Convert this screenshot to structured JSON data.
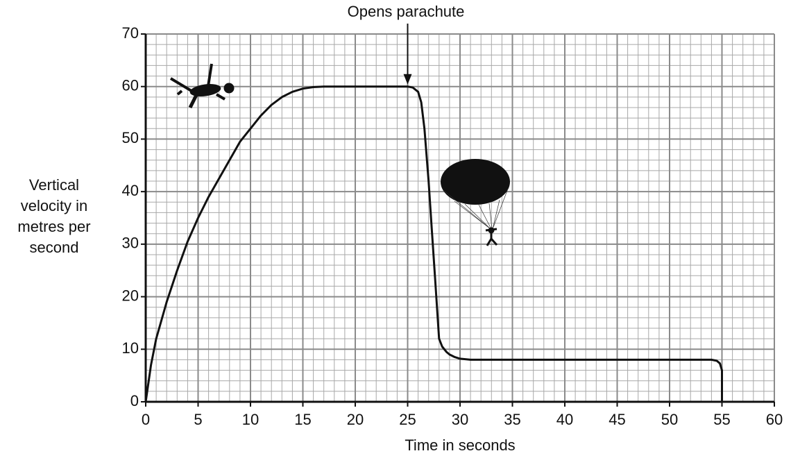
{
  "chart_data": {
    "type": "line",
    "x_label": "Time in seconds",
    "y_label": [
      "Vertical",
      "velocity in",
      "metres per",
      "second"
    ],
    "x": [
      0,
      0.5,
      1,
      2,
      3,
      4,
      5,
      6,
      7,
      8,
      9,
      10,
      11,
      12,
      13,
      14,
      15,
      16,
      17,
      18,
      20,
      22,
      24,
      25,
      25.5,
      26,
      26.3,
      26.6,
      27,
      27.3,
      27.6,
      27.8,
      28,
      28.3,
      28.7,
      29,
      29.5,
      30,
      31,
      35,
      40,
      45,
      50,
      53,
      54,
      54.5,
      54.8,
      55,
      55
    ],
    "series": [
      {
        "color": "#111111",
        "values": [
          0,
          7,
          12,
          19,
          25,
          30.5,
          35,
          39,
          42.5,
          46,
          49.5,
          52,
          54.5,
          56.5,
          58,
          59,
          59.6,
          59.9,
          60,
          60,
          60,
          60,
          60,
          60,
          59.8,
          59,
          57,
          52,
          42,
          33,
          24,
          18,
          12,
          10.5,
          9.5,
          9,
          8.5,
          8.2,
          8,
          8,
          8,
          8,
          8,
          8,
          8,
          7.8,
          7.3,
          6,
          0
        ]
      }
    ],
    "xlim": [
      0,
      60
    ],
    "xticks": [
      0,
      5,
      10,
      15,
      20,
      25,
      30,
      35,
      40,
      45,
      50,
      55,
      60
    ],
    "ylim": [
      0,
      70
    ],
    "yticks": [
      0,
      10,
      20,
      30,
      40,
      50,
      60,
      70
    ],
    "grid": true,
    "minor_divisions": 5,
    "annotations": [
      {
        "text": "Opens parachute",
        "x": 25,
        "y": 60
      }
    ]
  }
}
